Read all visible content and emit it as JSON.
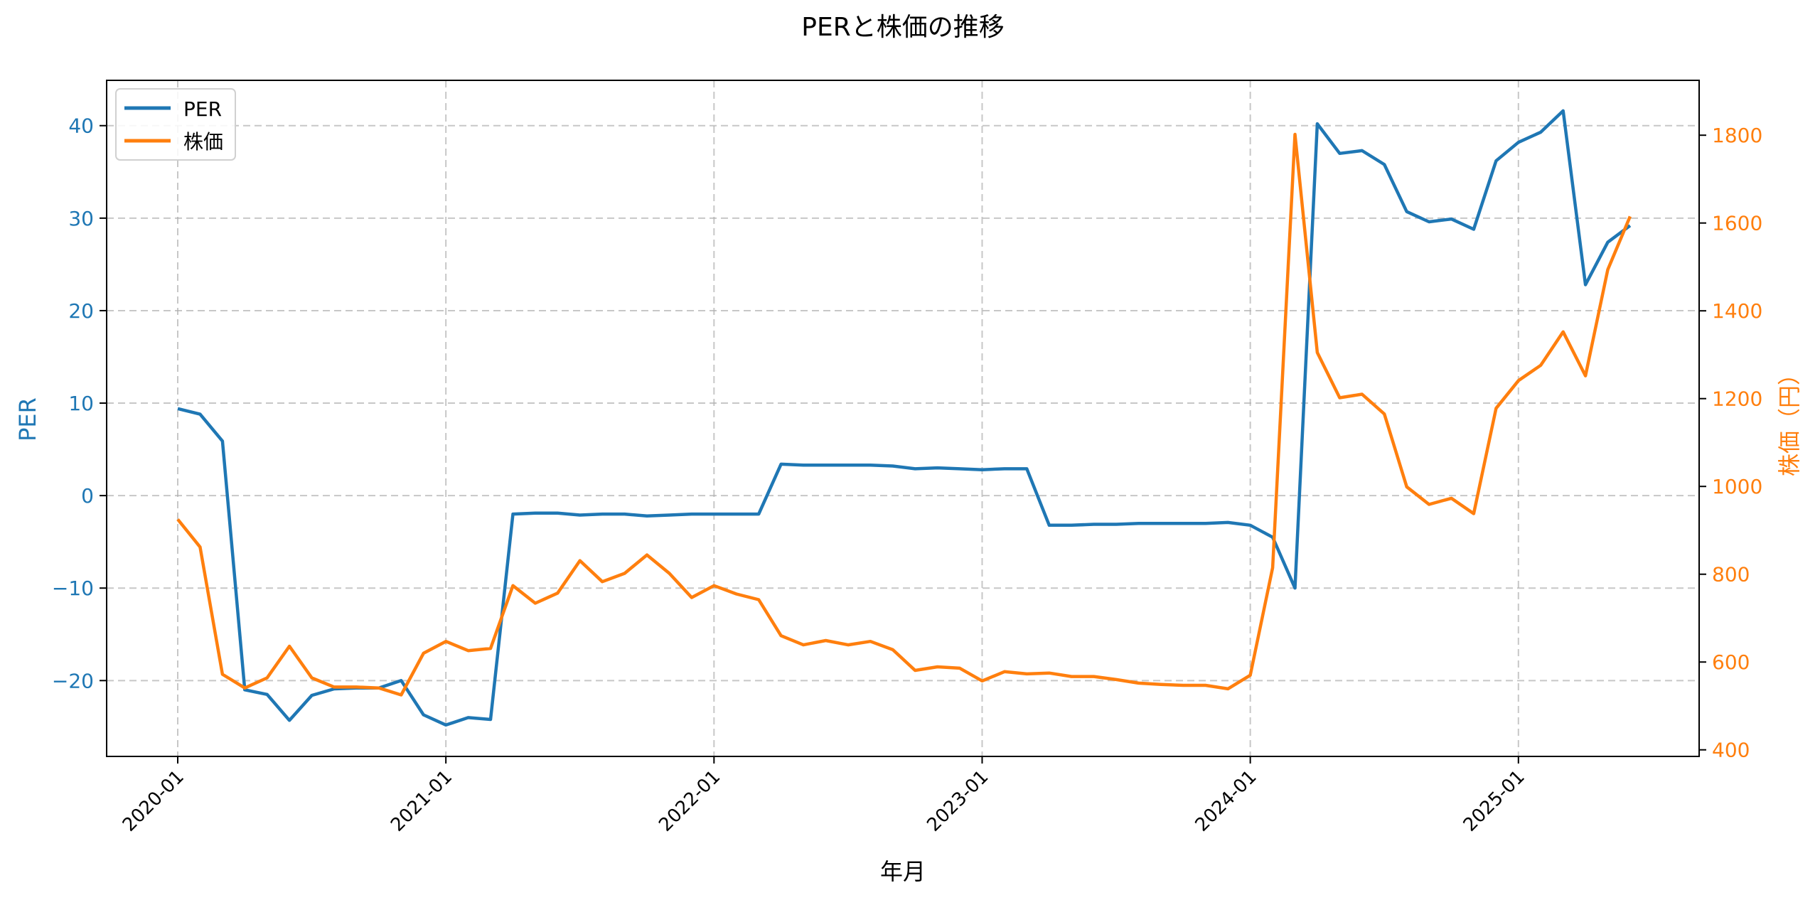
{
  "title": "PERと株価の推移",
  "colors": {
    "per": "#1f77b4",
    "price": "#ff7f0e",
    "grid": "#b0b0b0",
    "axis": "#000000"
  },
  "chart_data": {
    "type": "line",
    "title": "PERと株価の推移",
    "xlabel": "年月",
    "ylabel": "PER",
    "ylabel_right": "株価（円）",
    "x_ticks": [
      "2020-01",
      "2021-01",
      "2022-01",
      "2023-01",
      "2024-01",
      "2025-01"
    ],
    "y_ticks_left": [
      -20,
      -10,
      0,
      10,
      20,
      30,
      40
    ],
    "y_ticks_right": [
      400,
      600,
      800,
      1000,
      1200,
      1400,
      1600,
      1800
    ],
    "ylim_left": [
      -28.2,
      44.9
    ],
    "ylim_right": [
      385,
      1925
    ],
    "grid": true,
    "legend_position": "upper left",
    "legend": [
      "PER",
      "株価"
    ],
    "x": [
      "2020-01",
      "2020-02",
      "2020-03",
      "2020-04",
      "2020-05",
      "2020-06",
      "2020-07",
      "2020-08",
      "2020-09",
      "2020-10",
      "2020-11",
      "2020-12",
      "2021-01",
      "2021-02",
      "2021-03",
      "2021-04",
      "2021-05",
      "2021-06",
      "2021-07",
      "2021-08",
      "2021-09",
      "2021-10",
      "2021-11",
      "2021-12",
      "2022-01",
      "2022-02",
      "2022-03",
      "2022-04",
      "2022-05",
      "2022-06",
      "2022-07",
      "2022-08",
      "2022-09",
      "2022-10",
      "2022-11",
      "2022-12",
      "2023-01",
      "2023-02",
      "2023-03",
      "2023-04",
      "2023-05",
      "2023-06",
      "2023-07",
      "2023-08",
      "2023-09",
      "2023-10",
      "2023-11",
      "2023-12",
      "2024-01",
      "2024-02",
      "2024-03",
      "2024-04",
      "2024-05",
      "2024-06",
      "2024-07",
      "2024-08",
      "2024-09",
      "2024-10",
      "2024-11",
      "2024-12",
      "2025-01",
      "2025-02",
      "2025-03",
      "2025-04",
      "2025-05",
      "2025-06"
    ],
    "series": [
      {
        "name": "PER",
        "axis": "left",
        "color": "#1f77b4",
        "values": [
          9.4,
          8.8,
          5.9,
          -21.0,
          -21.5,
          -24.3,
          -21.6,
          -20.9,
          -20.8,
          -20.8,
          -20.0,
          -23.7,
          -24.8,
          -24.0,
          -24.2,
          -2.0,
          -1.9,
          -1.9,
          -2.1,
          -2.0,
          -2.0,
          -2.2,
          -2.1,
          -2.0,
          -2.0,
          -2.0,
          -2.0,
          3.4,
          3.3,
          3.3,
          3.3,
          3.3,
          3.2,
          2.9,
          3.0,
          2.9,
          2.8,
          2.9,
          2.9,
          -3.2,
          -3.2,
          -3.1,
          -3.1,
          -3.0,
          -3.0,
          -3.0,
          -3.0,
          -2.9,
          -3.2,
          -4.5,
          -10.0,
          40.2,
          37.0,
          37.3,
          35.8,
          30.7,
          29.6,
          29.9,
          28.8,
          36.2,
          38.2,
          39.3,
          41.6,
          22.8,
          27.4,
          29.2
        ]
      },
      {
        "name": "株価",
        "axis": "right",
        "color": "#ff7f0e",
        "values": [
          925,
          862,
          572,
          541,
          564,
          636,
          564,
          543,
          543,
          541,
          525,
          620,
          647,
          626,
          631,
          774,
          734,
          757,
          831,
          783,
          802,
          844,
          802,
          747,
          774,
          755,
          742,
          660,
          639,
          649,
          639,
          647,
          628,
          581,
          589,
          586,
          557,
          578,
          573,
          575,
          567,
          567,
          560,
          552,
          549,
          547,
          547,
          539,
          570,
          815,
          1802,
          1305,
          1202,
          1210,
          1165,
          999,
          959,
          973,
          938,
          1178,
          1241,
          1276,
          1352,
          1252,
          1494,
          1615
        ]
      }
    ]
  }
}
